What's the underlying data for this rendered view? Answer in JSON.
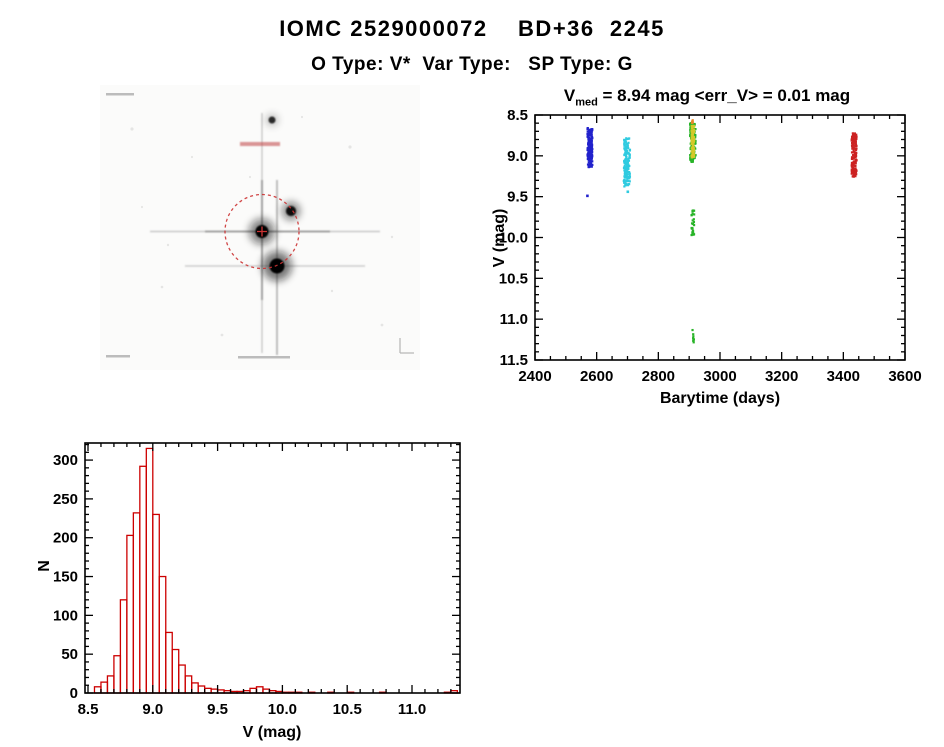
{
  "header": {
    "title": "IOMC 2529000072    BD+36  2245",
    "subtitle": "O Type: V*  Var Type:   SP Type: G"
  },
  "scatter": {
    "title_v": "V",
    "title_sub": "med",
    "title_rest": " = 8.94 mag <err_V> = 0.01 mag",
    "xlabel": "Barytime (days)",
    "ylabel": "V (mag)"
  },
  "histogram": {
    "xlabel": "V (mag)",
    "ylabel": "N"
  },
  "chart_data": [
    {
      "type": "scatter",
      "title": "V_med = 8.94 mag <err_V> = 0.01 mag",
      "xlabel": "Barytime (days)",
      "ylabel": "V (mag)",
      "xlim": [
        2400,
        3600
      ],
      "ylim": [
        8.5,
        11.5
      ],
      "y_axis_inverted": true,
      "xticks": [
        "2400",
        "2600",
        "2800",
        "3000",
        "3200",
        "3400",
        "3600"
      ],
      "yticks": [
        "8.5",
        "9.0",
        "9.5",
        "10.0",
        "10.5",
        "11.0",
        "11.5"
      ],
      "xminor": 50,
      "yminor": 0.1,
      "grid": false,
      "series": [
        {
          "name": "epoch-2578-blue",
          "color": "#2222cc",
          "clusters": [
            {
              "x": 2578,
              "x_spread": 16,
              "v_min": 8.66,
              "v_max": 9.14,
              "n": 150
            }
          ],
          "points": [
            [
              2570,
              9.49
            ]
          ]
        },
        {
          "name": "epoch-2698-cyan",
          "color": "#30cbe0",
          "clusters": [
            {
              "x": 2698,
              "x_spread": 20,
              "v_min": 8.78,
              "v_max": 9.38,
              "n": 150
            }
          ],
          "points": [
            [
              2701,
              9.44
            ]
          ]
        },
        {
          "name": "epoch-2912-green",
          "color": "#28b428",
          "clusters": [
            {
              "x": 2912,
              "x_spread": 18,
              "v_min": 8.6,
              "v_max": 9.08,
              "n": 120
            },
            {
              "x": 2912,
              "x_spread": 9,
              "v_min": 9.65,
              "v_max": 9.98,
              "n": 26
            },
            {
              "x": 2913,
              "x_spread": 5,
              "v_min": 11.13,
              "v_max": 11.3,
              "n": 8
            }
          ],
          "points": []
        },
        {
          "name": "epoch-2912-yellow",
          "color": "#d4c828",
          "clusters": [
            {
              "x": 2912,
              "x_spread": 9,
              "v_min": 8.63,
              "v_max": 9.02,
              "n": 85
            }
          ],
          "points": []
        },
        {
          "name": "epoch-2912-orange",
          "color": "#e88828",
          "clusters": [
            {
              "x": 2910,
              "x_spread": 4,
              "v_min": 8.54,
              "v_max": 8.62,
              "n": 6
            }
          ],
          "points": []
        },
        {
          "name": "epoch-3435-red",
          "color": "#cc2222",
          "clusters": [
            {
              "x": 3435,
              "x_spread": 16,
              "v_min": 8.72,
              "v_max": 9.26,
              "n": 140
            }
          ],
          "points": []
        }
      ]
    },
    {
      "type": "histogram",
      "xlabel": "V (mag)",
      "ylabel": "N",
      "bar_color": "#cc0000",
      "bin_start": 8.55,
      "bin_width": 0.05,
      "counts": [
        8,
        14,
        22,
        48,
        120,
        203,
        232,
        292,
        315,
        230,
        150,
        78,
        56,
        36,
        22,
        13,
        9,
        6,
        5,
        4,
        3,
        2,
        2,
        3,
        6,
        8,
        5,
        3,
        2,
        1,
        1,
        1,
        0,
        1,
        0,
        0,
        1,
        0,
        0,
        1,
        0,
        0,
        0,
        0,
        1,
        0,
        0,
        0,
        0,
        0,
        0,
        0,
        0,
        0,
        1,
        3
      ],
      "xticks": [
        "8.5",
        "9.0",
        "9.5",
        "10.0",
        "10.5",
        "11.0"
      ],
      "yticks": [
        "0",
        "50",
        "100",
        "150",
        "200",
        "250",
        "300"
      ],
      "xminor": 0.1,
      "yminor": 10,
      "xlim": [
        8.477,
        11.37
      ],
      "ylim": [
        0,
        322
      ],
      "grid": false
    }
  ]
}
